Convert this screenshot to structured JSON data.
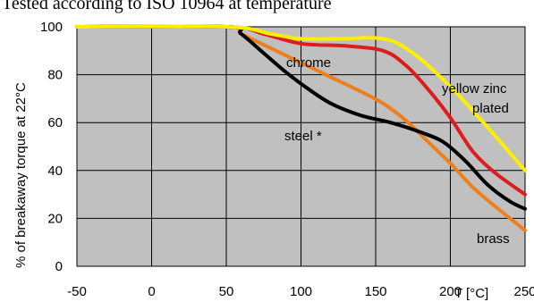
{
  "caption": "Tested according to ISO 10964 at temperature",
  "chart_data": {
    "type": "line",
    "xlabel": "T [°C]",
    "ylabel": "% of breakaway torque at 22°C",
    "xlim": [
      -50,
      250
    ],
    "ylim": [
      0,
      100
    ],
    "x_ticks": [
      -50,
      0,
      50,
      100,
      150,
      200,
      250
    ],
    "x_tick_labels": [
      "-50",
      "0",
      "50",
      "100",
      "150",
      "200",
      "250"
    ],
    "y_ticks": [
      0,
      20,
      40,
      60,
      80,
      100
    ],
    "y_tick_labels": [
      "0",
      "20",
      "40",
      "60",
      "80",
      "100"
    ],
    "grid": true,
    "plot_background": "#c0c0c0",
    "series": [
      {
        "name": "brass",
        "color": "#ee7f1d",
        "points": [
          [
            -50,
            100
          ],
          [
            50,
            100
          ],
          [
            60,
            97
          ],
          [
            80,
            91
          ],
          [
            100,
            85
          ],
          [
            120,
            79
          ],
          [
            140,
            73
          ],
          [
            155,
            68
          ],
          [
            170,
            61
          ],
          [
            185,
            52
          ],
          [
            200,
            43
          ],
          [
            215,
            33
          ],
          [
            230,
            25
          ],
          [
            250,
            15
          ]
        ]
      },
      {
        "name": "steel *",
        "color": "#000000",
        "points": [
          [
            -50,
            100
          ],
          [
            50,
            100
          ],
          [
            60,
            97
          ],
          [
            75,
            89
          ],
          [
            90,
            81
          ],
          [
            105,
            74
          ],
          [
            120,
            68
          ],
          [
            140,
            63
          ],
          [
            160,
            60
          ],
          [
            180,
            56
          ],
          [
            195,
            52
          ],
          [
            210,
            44
          ],
          [
            225,
            34
          ],
          [
            240,
            27
          ],
          [
            250,
            24
          ]
        ]
      },
      {
        "name": "chrome",
        "color": "#dd1c1c",
        "points": [
          [
            -50,
            100
          ],
          [
            50,
            100
          ],
          [
            75,
            97
          ],
          [
            100,
            93
          ],
          [
            130,
            92
          ],
          [
            155,
            90
          ],
          [
            170,
            84
          ],
          [
            185,
            74
          ],
          [
            200,
            62
          ],
          [
            215,
            48
          ],
          [
            230,
            39
          ],
          [
            250,
            30
          ]
        ]
      },
      {
        "name": "yellow zinc plated",
        "color": "#ffee00",
        "points": [
          [
            -50,
            100
          ],
          [
            50,
            100
          ],
          [
            80,
            97
          ],
          [
            100,
            95
          ],
          [
            125,
            95
          ],
          [
            155,
            95
          ],
          [
            175,
            89
          ],
          [
            200,
            75
          ],
          [
            225,
            58
          ],
          [
            250,
            40
          ]
        ]
      }
    ],
    "annotations": {
      "chrome": "chrome",
      "yellow_line1": "yellow zinc",
      "yellow_line2": "plated",
      "steel": "steel *",
      "brass": "brass"
    }
  }
}
